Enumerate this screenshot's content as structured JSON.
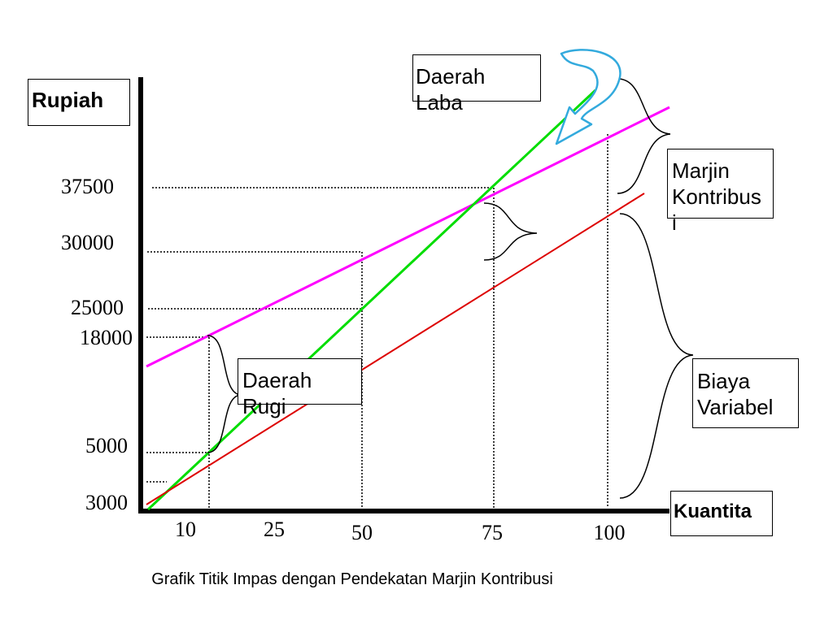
{
  "chart_data": {
    "type": "line",
    "caption": "Grafik Titik Impas dengan Pendekatan Marjin Kontribusi",
    "ylabel": "Rupiah",
    "xlabel": "Kuantita",
    "y_ticks": [
      "37500",
      "30000",
      "25000",
      "18000",
      "5000",
      "3000"
    ],
    "x_ticks": [
      "10",
      "25",
      "50",
      "75",
      "100"
    ],
    "colors": {
      "total_cost": "#ff00ff",
      "revenue": "#00dd00",
      "variable_cost": "#dd0000",
      "arrow": "#33aadd"
    },
    "annotations": {
      "profit_area": "Daerah\nLaba",
      "loss_area": "Daerah\nRugi",
      "contribution_margin": "Marjin\nKontribus\ni",
      "variable_cost": "Biaya\nVariabel"
    }
  }
}
